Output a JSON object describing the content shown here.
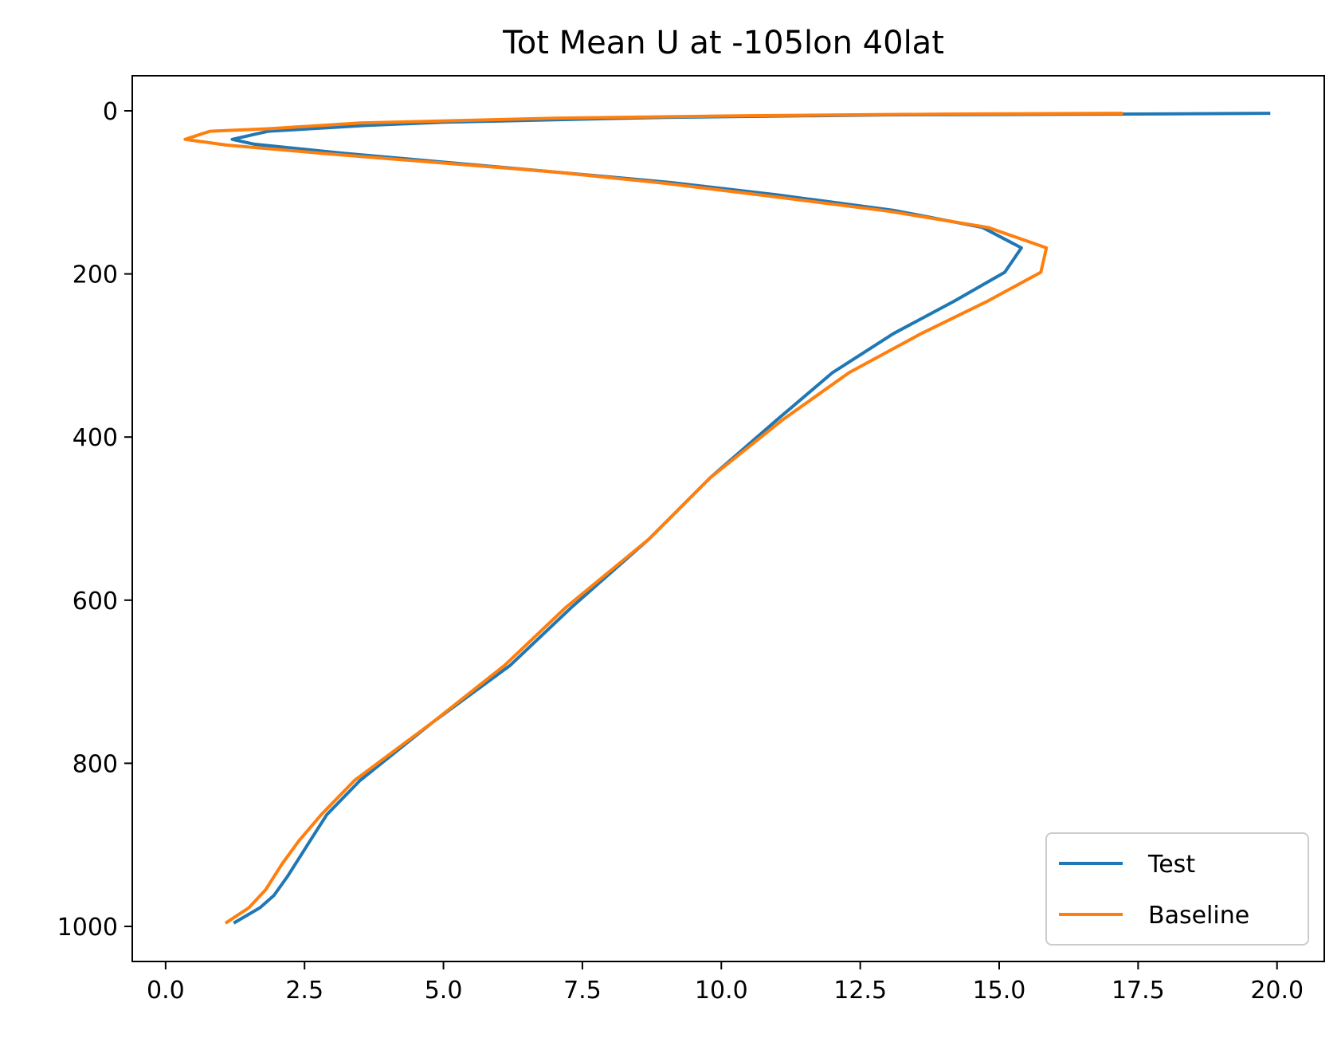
{
  "chart_data": {
    "type": "line",
    "title": "Tot Mean U at -105lon 40lat",
    "xlabel": "",
    "ylabel": "",
    "xlim": [
      -0.6,
      20.85
    ],
    "ylim": [
      1043,
      -43
    ],
    "y_inverted": true,
    "grid": false,
    "legend_position": "lower-right",
    "xticks": [
      0.0,
      2.5,
      5.0,
      7.5,
      10.0,
      12.5,
      15.0,
      17.5,
      20.0
    ],
    "xtick_labels": [
      "0.0",
      "2.5",
      "5.0",
      "7.5",
      "10.0",
      "12.5",
      "15.0",
      "17.5",
      "20.0"
    ],
    "yticks": [
      0,
      200,
      400,
      600,
      800,
      1000
    ],
    "ytick_labels": [
      "0",
      "200",
      "400",
      "600",
      "800",
      "1000"
    ],
    "series": [
      {
        "name": "Test",
        "color": "#1f77b4",
        "points": [
          [
            19.85,
            3
          ],
          [
            17.2,
            4
          ],
          [
            13.0,
            5
          ],
          [
            9.0,
            8
          ],
          [
            5.0,
            14
          ],
          [
            3.6,
            18
          ],
          [
            1.85,
            25
          ],
          [
            1.2,
            35
          ],
          [
            1.6,
            41
          ],
          [
            3.2,
            52
          ],
          [
            5.0,
            63
          ],
          [
            7.0,
            75
          ],
          [
            9.1,
            88
          ],
          [
            11.0,
            103
          ],
          [
            13.1,
            122
          ],
          [
            14.7,
            143
          ],
          [
            15.4,
            168
          ],
          [
            15.1,
            198
          ],
          [
            14.2,
            233
          ],
          [
            13.1,
            273
          ],
          [
            12.0,
            321
          ],
          [
            11.0,
            379
          ],
          [
            9.8,
            450
          ],
          [
            8.7,
            525
          ],
          [
            7.3,
            609
          ],
          [
            6.2,
            680
          ],
          [
            4.8,
            750
          ],
          [
            3.5,
            821
          ],
          [
            2.9,
            863
          ],
          [
            2.6,
            895
          ],
          [
            2.2,
            938
          ],
          [
            1.95,
            962
          ],
          [
            1.7,
            977
          ],
          [
            1.25,
            995
          ]
        ]
      },
      {
        "name": "Baseline",
        "color": "#ff7f0e",
        "points": [
          [
            17.2,
            3
          ],
          [
            14.0,
            4
          ],
          [
            10.5,
            6
          ],
          [
            7.0,
            9
          ],
          [
            3.5,
            15
          ],
          [
            1.85,
            22
          ],
          [
            0.8,
            25
          ],
          [
            0.35,
            35
          ],
          [
            1.1,
            42
          ],
          [
            2.8,
            52
          ],
          [
            4.8,
            63
          ],
          [
            7.0,
            75
          ],
          [
            9.0,
            89
          ],
          [
            10.8,
            104
          ],
          [
            13.0,
            123
          ],
          [
            14.8,
            143
          ],
          [
            15.85,
            168
          ],
          [
            15.75,
            198
          ],
          [
            14.8,
            233
          ],
          [
            13.6,
            273
          ],
          [
            12.3,
            321
          ],
          [
            11.1,
            379
          ],
          [
            9.8,
            450
          ],
          [
            8.7,
            525
          ],
          [
            7.2,
            609
          ],
          [
            6.1,
            680
          ],
          [
            4.8,
            750
          ],
          [
            3.4,
            821
          ],
          [
            2.8,
            863
          ],
          [
            2.4,
            895
          ],
          [
            2.1,
            923
          ],
          [
            1.8,
            955
          ],
          [
            1.5,
            977
          ],
          [
            1.1,
            995
          ]
        ]
      }
    ]
  }
}
